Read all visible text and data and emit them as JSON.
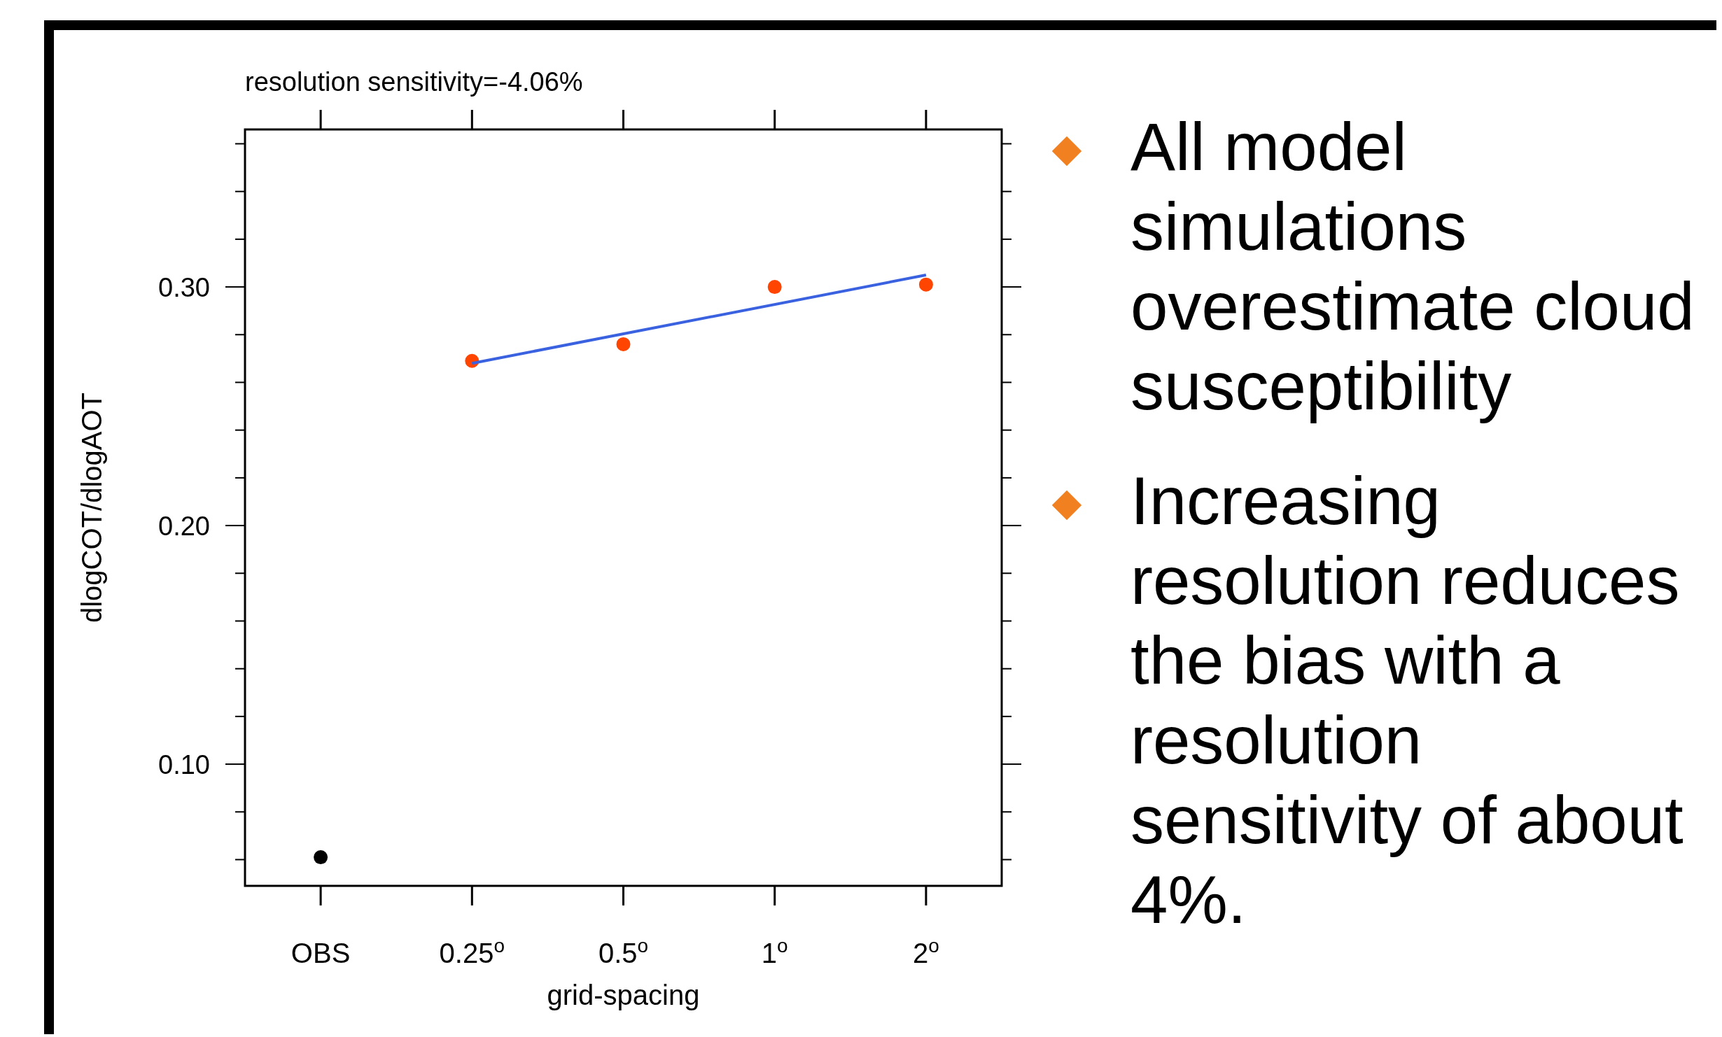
{
  "chart_data": {
    "type": "scatter",
    "title": "resolution sensitivity=-4.06%",
    "xlabel": "grid-spacing",
    "ylabel": "dlogCOT/dlogAOT",
    "categories": [
      "OBS",
      "0.25$^{o}$",
      "0.5$^{o}$",
      "1$^{o}$",
      "2$^{o}$"
    ],
    "series": [
      {
        "marker": "circle",
        "color": "#000000",
        "values": [
          0.061,
          null,
          null,
          null,
          null
        ]
      },
      {
        "marker": "circle",
        "color": "#ff4500",
        "values": [
          null,
          0.269,
          0.276,
          0.3,
          0.301
        ]
      },
      {
        "type": "line",
        "color": "#3a62e0",
        "x": [
          "0.25$^{o}$",
          "2$^{o}$"
        ],
        "values": [
          0.268,
          0.305
        ]
      }
    ],
    "ylim": [
      0.049,
      0.366
    ],
    "yticks": [
      {
        "value": 0.06,
        "label": null
      },
      {
        "value": 0.08,
        "label": null
      },
      {
        "value": 0.1,
        "label": "0.10"
      },
      {
        "value": 0.12,
        "label": null
      },
      {
        "value": 0.14,
        "label": null
      },
      {
        "value": 0.16,
        "label": null
      },
      {
        "value": 0.18,
        "label": null
      },
      {
        "value": 0.2,
        "label": "0.20"
      },
      {
        "value": 0.22,
        "label": null
      },
      {
        "value": 0.24,
        "label": null
      },
      {
        "value": 0.26,
        "label": null
      },
      {
        "value": 0.28,
        "label": null
      },
      {
        "value": 0.3,
        "label": "0.30"
      },
      {
        "value": 0.32,
        "label": null
      },
      {
        "value": 0.34,
        "label": null
      },
      {
        "value": 0.36,
        "label": null
      }
    ],
    "annotations": [
      "All model simulations overestimate cloud susceptibility",
      "Increasing resolution reduces the bias with a resolution sensitivity of about 4%."
    ]
  }
}
